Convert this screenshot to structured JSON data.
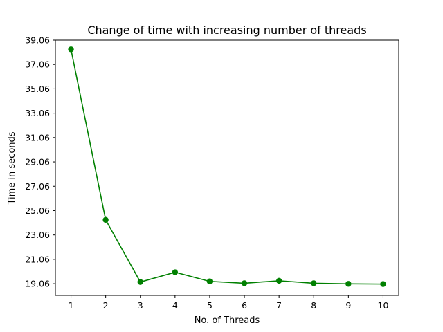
{
  "chart_data": {
    "type": "line",
    "title": "Change of time with increasing number of threads",
    "xlabel": "No. of Threads",
    "ylabel": "Time in seconds",
    "x": [
      1,
      2,
      3,
      4,
      5,
      6,
      7,
      8,
      9,
      10
    ],
    "xticks": [
      "1",
      "2",
      "3",
      "4",
      "5",
      "6",
      "7",
      "8",
      "9",
      "10"
    ],
    "yticks": [
      "19.06",
      "21.06",
      "23.06",
      "25.06",
      "27.06",
      "29.06",
      "31.06",
      "33.06",
      "35.06",
      "37.06",
      "39.06"
    ],
    "xlim": [
      0.55,
      10.45
    ],
    "ylim": [
      18.1,
      39.06
    ],
    "series": [
      {
        "values": [
          38.3,
          24.3,
          19.2,
          20.0,
          19.25,
          19.1,
          19.3,
          19.1,
          19.05,
          19.03
        ],
        "color": "#008000",
        "marker": "circle"
      }
    ],
    "grid": false,
    "legend": "none"
  }
}
